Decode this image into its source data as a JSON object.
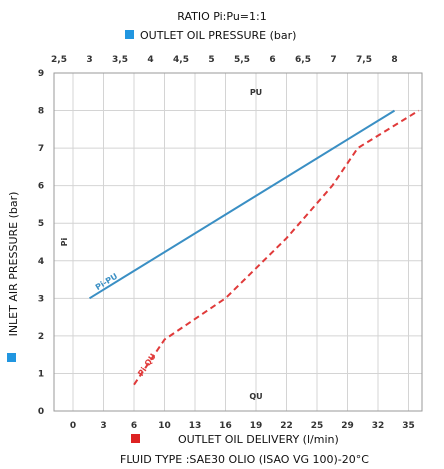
{
  "chart_data": {
    "type": "line",
    "title": "RATIO  Pi:Pu=1:1",
    "footnote": "FLUID TYPE :SAE30 OLIO (ISAO VG 100)-20°C",
    "top_axis": {
      "label": "OUTLET OIL PRESSURE (bar)",
      "ticks": [
        "2,5",
        "3",
        "3,5",
        "4",
        "4,5",
        "5",
        "5,5",
        "6",
        "6,5",
        "7",
        "7,5",
        "8"
      ],
      "color": "#2196e0"
    },
    "x_axis": {
      "label": "OUTLET OIL DELIVERY (l/min)",
      "ticks": [
        "0",
        "3",
        "6",
        "10",
        "13",
        "16",
        "19",
        "22",
        "25",
        "29",
        "32",
        "35"
      ],
      "color": "#dd2222"
    },
    "y_axis": {
      "label": "INLET AIR PRESSURE (bar)",
      "ticks": [
        "0",
        "1",
        "2",
        "3",
        "4",
        "5",
        "6",
        "7",
        "8",
        "9"
      ],
      "ylim": [
        0,
        9
      ],
      "color": "#2196e0"
    },
    "inner_labels": {
      "top": "PU",
      "bottom": "QU",
      "left": "Pi"
    },
    "grid": true,
    "series": [
      {
        "name": "Pi-PU",
        "style": "solid",
        "color": "#3a8fc4",
        "x_pressure_bar": [
          3,
          8
        ],
        "y": [
          3,
          8
        ]
      },
      {
        "name": "Pi-QU",
        "style": "dashed",
        "color": "#e03a3a",
        "x_delivery_lmin": [
          6,
          10,
          16,
          22,
          27,
          30,
          36
        ],
        "y": [
          0.7,
          1.9,
          3.0,
          4.6,
          6.0,
          7.0,
          8.0
        ]
      }
    ]
  }
}
